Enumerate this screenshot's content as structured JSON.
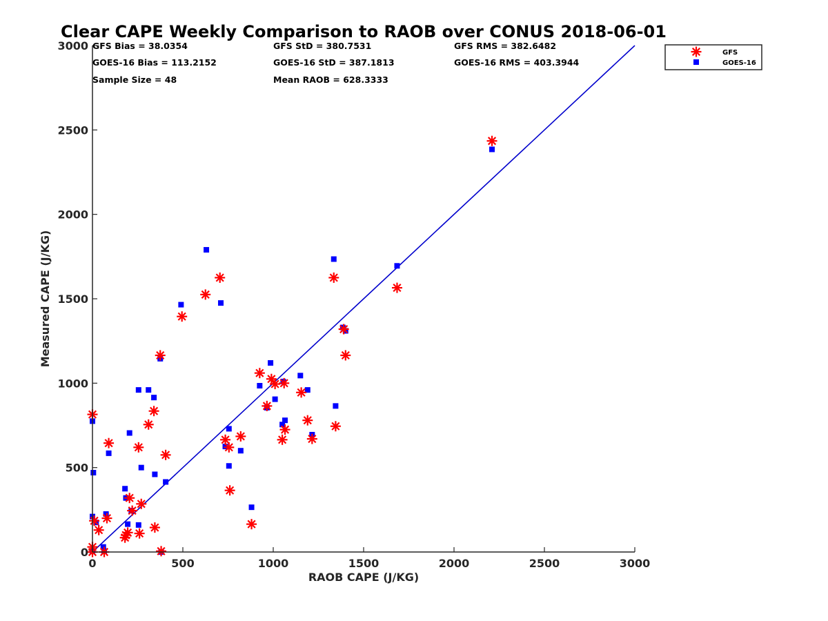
{
  "chart_data": {
    "type": "scatter",
    "title": "Clear CAPE Weekly Comparison to RAOB over CONUS 2018-06-01",
    "xlabel": "RAOB CAPE (J/KG)",
    "ylabel": "Measured CAPE (J/KG)",
    "xlim": [
      0,
      3000
    ],
    "ylim": [
      0,
      3000
    ],
    "xticks": [
      0,
      500,
      1000,
      1500,
      2000,
      2500,
      3000
    ],
    "yticks": [
      0,
      500,
      1000,
      1500,
      2000,
      2500,
      3000
    ],
    "xtick_labels": [
      "0",
      "500",
      "1000",
      "1500",
      "2000",
      "2500",
      "3000"
    ],
    "ytick_labels": [
      "0",
      "500",
      "1000",
      "1500",
      "2000",
      "2500",
      "3000"
    ],
    "grid": false,
    "legend": {
      "position": "top-right",
      "entries": [
        "GFS",
        "GOES-16"
      ]
    },
    "stats": [
      "GFS Bias = 38.0354",
      "GFS StD = 380.7531",
      "GFS RMS = 382.6482",
      "GOES-16 Bias = 113.2152",
      "GOES-16 StD = 387.1813",
      "GOES-16 RMS = 403.3944",
      "Sample Size = 48",
      "Mean RAOB = 628.3333"
    ],
    "reference_line": {
      "name": "1:1",
      "x": [
        0,
        3000
      ],
      "y": [
        0,
        3000
      ],
      "color": "#0000cc"
    },
    "series": [
      {
        "name": "GFS",
        "marker": "asterisk",
        "color": "#ff0000",
        "points": [
          [
            0,
            815
          ],
          [
            0,
            30
          ],
          [
            0,
            0
          ],
          [
            10,
            185
          ],
          [
            35,
            130
          ],
          [
            65,
            0
          ],
          [
            80,
            200
          ],
          [
            90,
            645
          ],
          [
            180,
            85
          ],
          [
            185,
            100
          ],
          [
            195,
            115
          ],
          [
            205,
            320
          ],
          [
            220,
            245
          ],
          [
            255,
            620
          ],
          [
            260,
            110
          ],
          [
            270,
            285
          ],
          [
            310,
            755
          ],
          [
            340,
            835
          ],
          [
            345,
            145
          ],
          [
            375,
            1165
          ],
          [
            380,
            5
          ],
          [
            405,
            575
          ],
          [
            495,
            1395
          ],
          [
            625,
            1525
          ],
          [
            705,
            1625
          ],
          [
            735,
            665
          ],
          [
            755,
            620
          ],
          [
            760,
            365
          ],
          [
            820,
            685
          ],
          [
            880,
            165
          ],
          [
            925,
            1060
          ],
          [
            965,
            865
          ],
          [
            990,
            1025
          ],
          [
            1010,
            995
          ],
          [
            1050,
            665
          ],
          [
            1060,
            1000
          ],
          [
            1065,
            725
          ],
          [
            1155,
            945
          ],
          [
            1190,
            780
          ],
          [
            1215,
            670
          ],
          [
            1335,
            1625
          ],
          [
            1345,
            745
          ],
          [
            1390,
            1320
          ],
          [
            1400,
            1165
          ],
          [
            1685,
            1565
          ],
          [
            2210,
            2435
          ]
        ]
      },
      {
        "name": "GOES-16",
        "marker": "square",
        "color": "#0000ff",
        "points": [
          [
            0,
            775
          ],
          [
            5,
            470
          ],
          [
            0,
            210
          ],
          [
            0,
            5
          ],
          [
            20,
            175
          ],
          [
            60,
            30
          ],
          [
            65,
            5
          ],
          [
            75,
            225
          ],
          [
            90,
            585
          ],
          [
            180,
            375
          ],
          [
            185,
            320
          ],
          [
            195,
            165
          ],
          [
            205,
            705
          ],
          [
            215,
            245
          ],
          [
            255,
            960
          ],
          [
            255,
            160
          ],
          [
            270,
            500
          ],
          [
            310,
            960
          ],
          [
            340,
            915
          ],
          [
            345,
            460
          ],
          [
            375,
            1145
          ],
          [
            380,
            0
          ],
          [
            405,
            415
          ],
          [
            490,
            1465
          ],
          [
            630,
            1790
          ],
          [
            710,
            1475
          ],
          [
            735,
            625
          ],
          [
            755,
            730
          ],
          [
            755,
            510
          ],
          [
            820,
            600
          ],
          [
            880,
            265
          ],
          [
            925,
            985
          ],
          [
            965,
            855
          ],
          [
            985,
            1120
          ],
          [
            1010,
            905
          ],
          [
            1050,
            755
          ],
          [
            1055,
            1010
          ],
          [
            1065,
            780
          ],
          [
            1150,
            1045
          ],
          [
            1190,
            960
          ],
          [
            1215,
            695
          ],
          [
            1335,
            1735
          ],
          [
            1345,
            865
          ],
          [
            1385,
            1330
          ],
          [
            1400,
            1310
          ],
          [
            1685,
            1695
          ],
          [
            2210,
            2385
          ]
        ]
      }
    ]
  }
}
